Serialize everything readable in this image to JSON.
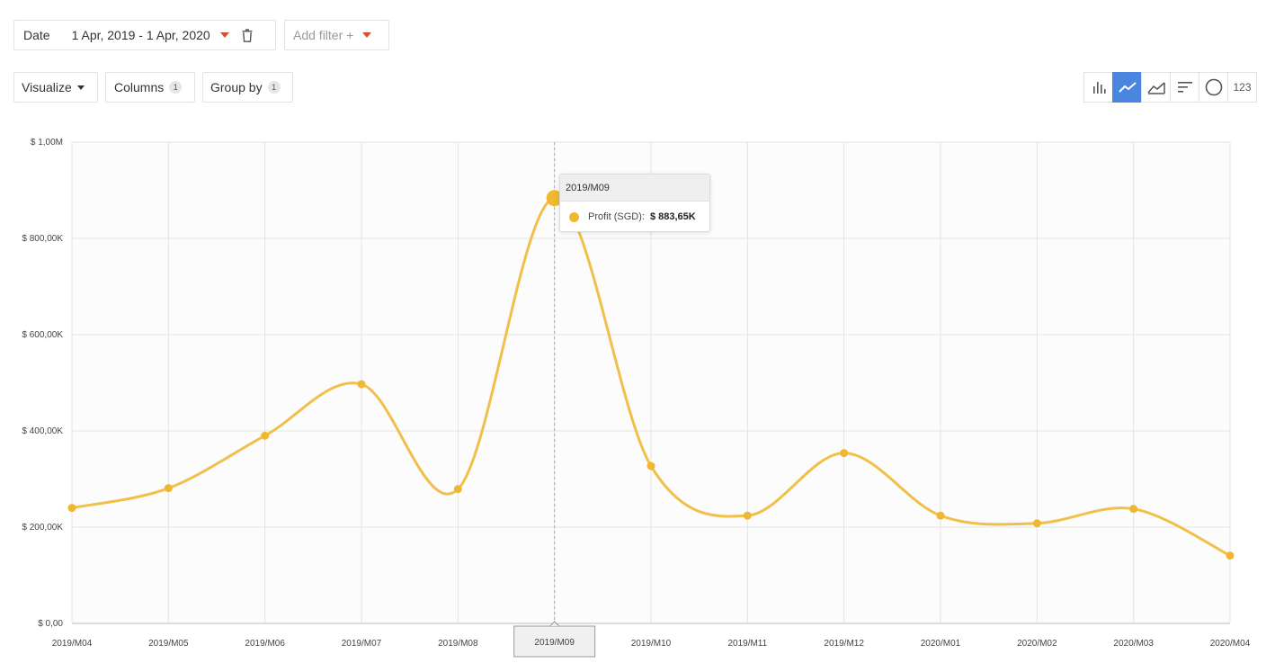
{
  "filters": {
    "date_label": "Date",
    "date_range": "1 Apr, 2019 - 1 Apr, 2020",
    "add_filter": "Add filter +"
  },
  "toolbar": {
    "visualize": "Visualize",
    "columns": "Columns",
    "columns_count": "1",
    "group_by": "Group by",
    "group_by_count": "1"
  },
  "viz_types": {
    "number_label": "123",
    "active": "line",
    "icons": [
      "bar-chart-icon",
      "line-chart-icon",
      "area-chart-icon",
      "sorted-bars-icon",
      "pie-chart-icon",
      "number-icon"
    ]
  },
  "colors": {
    "series": "#f0c04a",
    "point": "#f0b830",
    "active_toggle": "#4a86e0",
    "filter_caret": "#d6502b"
  },
  "tooltip": {
    "title": "2019/M09",
    "series_label": "Profit (SGD):",
    "value": "$ 883,65K"
  },
  "chart_data": {
    "type": "line",
    "title": "",
    "xlabel": "",
    "ylabel": "",
    "categories": [
      "2019/M04",
      "2019/M05",
      "2019/M06",
      "2019/M07",
      "2019/M08",
      "2019/M09",
      "2019/M10",
      "2019/M11",
      "2019/M12",
      "2020/M01",
      "2020/M02",
      "2020/M03",
      "2020/M04"
    ],
    "series": [
      {
        "name": "Profit (SGD)",
        "values": [
          240000,
          281000,
          390000,
          497000,
          279000,
          883650,
          327000,
          224000,
          354000,
          224000,
          208000,
          238000,
          141000
        ]
      }
    ],
    "ylim": [
      0,
      1000000
    ],
    "y_ticks": [
      0,
      200000,
      400000,
      600000,
      800000,
      1000000
    ],
    "y_tick_labels": [
      "$ 0,00",
      "$ 200,00K",
      "$ 400,00K",
      "$ 600,00K",
      "$ 800,00K",
      "$ 1,00M"
    ],
    "highlighted_category": "2019/M09",
    "grid": true,
    "legend": "none"
  }
}
